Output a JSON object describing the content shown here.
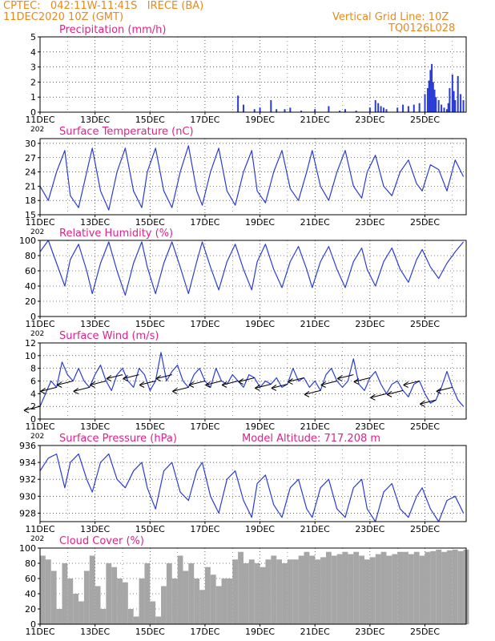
{
  "header": {
    "line1": "CPTEC:   042:11W-11:41S   IRECE (BA)",
    "line2": "11DEC2020 10Z (GMT)",
    "right1": "Vertical Grid Line: 10Z",
    "right2": "TQ0126L028"
  },
  "colors": {
    "header": "#e68a1f",
    "title": "#e0218a",
    "series": "#2b3cd6",
    "cloud": "#a6a6a6",
    "wind_arrow": "#000000"
  },
  "x_axis": {
    "tick_labels": [
      "11DEC",
      "13DEC",
      "15DEC",
      "17DEC",
      "19DEC",
      "21DEC",
      "23DEC",
      "25DEC"
    ],
    "tick_days": [
      11,
      13,
      15,
      17,
      19,
      21,
      23,
      25
    ],
    "year_fragment": "202",
    "range": [
      11,
      26.5
    ]
  },
  "chart_data": [
    {
      "type": "bar",
      "id": "precip",
      "title": "Precipitation (mm/h)",
      "ylim": [
        0,
        5
      ],
      "yticks": [
        0,
        1,
        2,
        3,
        4,
        5
      ],
      "grid": true,
      "x": [
        18.2,
        18.4,
        18.8,
        19.0,
        19.4,
        19.6,
        19.9,
        20.1,
        20.5,
        21.0,
        21.5,
        21.9,
        22.1,
        22.5,
        23.0,
        23.2,
        23.3,
        23.4,
        23.5,
        23.6,
        24.0,
        24.2,
        24.4,
        24.6,
        24.8,
        25.0,
        25.1,
        25.15,
        25.2,
        25.25,
        25.3,
        25.35,
        25.4,
        25.5,
        25.6,
        25.7,
        25.8,
        25.85,
        25.9,
        26.0,
        26.05,
        26.1,
        26.2,
        26.3,
        26.4
      ],
      "values": [
        1.1,
        0.5,
        0.2,
        0.3,
        0.8,
        0.2,
        0.2,
        0.3,
        0.1,
        0.2,
        0.4,
        0.1,
        0.2,
        0.1,
        0.3,
        0.8,
        0.6,
        0.4,
        0.3,
        0.2,
        0.3,
        0.5,
        0.4,
        0.5,
        0.6,
        1.2,
        1.6,
        2.1,
        2.8,
        3.2,
        2.0,
        1.5,
        1.0,
        0.8,
        0.5,
        0.3,
        0.2,
        0.6,
        1.6,
        2.5,
        1.4,
        0.8,
        2.4,
        1.2,
        0.8
      ]
    },
    {
      "type": "line",
      "id": "temp",
      "title": "Surface Temperature (nC)",
      "ylim": [
        15,
        31
      ],
      "yticks": [
        15,
        18,
        21,
        24,
        27,
        30
      ],
      "grid": true,
      "x": [
        11.0,
        11.3,
        11.6,
        11.9,
        12.1,
        12.4,
        12.7,
        12.9,
        13.2,
        13.5,
        13.8,
        14.1,
        14.4,
        14.7,
        14.9,
        15.2,
        15.5,
        15.8,
        16.1,
        16.4,
        16.7,
        16.9,
        17.2,
        17.5,
        17.8,
        18.1,
        18.4,
        18.7,
        18.9,
        19.2,
        19.5,
        19.8,
        20.1,
        20.4,
        20.7,
        20.9,
        21.2,
        21.5,
        21.8,
        22.1,
        22.4,
        22.7,
        22.9,
        23.2,
        23.5,
        23.8,
        24.1,
        24.4,
        24.7,
        24.9,
        25.2,
        25.5,
        25.8,
        26.1,
        26.4
      ],
      "values": [
        21,
        18,
        24,
        28.5,
        19,
        16.5,
        24,
        29,
        20,
        16,
        24,
        29,
        20,
        16.5,
        24,
        29,
        20,
        16.5,
        24,
        29.5,
        20,
        17,
        24,
        29,
        20,
        17,
        24,
        28.5,
        20,
        17.5,
        24,
        28.5,
        20.5,
        18,
        24,
        28.5,
        21,
        18,
        24,
        28.5,
        21,
        18.5,
        24,
        27.5,
        21,
        19,
        24,
        26.5,
        21.5,
        20,
        25.5,
        24.5,
        20,
        26.5,
        23
      ]
    },
    {
      "type": "line",
      "id": "rh",
      "title": "Relative Humidity (%)",
      "ylim": [
        0,
        100
      ],
      "yticks": [
        0,
        20,
        40,
        60,
        80,
        100
      ],
      "grid": true,
      "x": [
        11.0,
        11.3,
        11.6,
        11.9,
        12.1,
        12.4,
        12.7,
        12.9,
        13.2,
        13.5,
        13.8,
        14.1,
        14.4,
        14.7,
        14.9,
        15.2,
        15.5,
        15.8,
        16.1,
        16.4,
        16.7,
        16.9,
        17.2,
        17.5,
        17.8,
        18.1,
        18.4,
        18.7,
        18.9,
        19.2,
        19.5,
        19.8,
        20.1,
        20.4,
        20.7,
        20.9,
        21.2,
        21.5,
        21.8,
        22.1,
        22.4,
        22.7,
        22.9,
        23.2,
        23.5,
        23.8,
        24.1,
        24.4,
        24.7,
        24.9,
        25.2,
        25.5,
        25.8,
        26.1,
        26.4
      ],
      "values": [
        85,
        100,
        70,
        40,
        75,
        95,
        60,
        30,
        70,
        98,
        60,
        28,
        70,
        98,
        65,
        30,
        70,
        98,
        65,
        30,
        72,
        98,
        65,
        35,
        72,
        95,
        62,
        35,
        72,
        95,
        62,
        38,
        72,
        92,
        62,
        38,
        72,
        92,
        62,
        38,
        72,
        90,
        62,
        40,
        72,
        90,
        62,
        45,
        75,
        88,
        65,
        50,
        70,
        85,
        98
      ]
    },
    {
      "type": "line",
      "id": "wind",
      "title": "Surface Wind (m/s)",
      "ylim": [
        0,
        12
      ],
      "yticks": [
        0,
        2,
        4,
        6,
        8,
        10,
        12
      ],
      "grid": true,
      "x": [
        11.0,
        11.2,
        11.4,
        11.6,
        11.8,
        12.0,
        12.2,
        12.4,
        12.6,
        12.8,
        13.0,
        13.2,
        13.4,
        13.6,
        13.8,
        14.0,
        14.2,
        14.4,
        14.6,
        14.8,
        15.0,
        15.2,
        15.4,
        15.6,
        15.8,
        16.0,
        16.2,
        16.4,
        16.6,
        16.8,
        17.0,
        17.2,
        17.4,
        17.6,
        17.8,
        18.0,
        18.2,
        18.4,
        18.6,
        18.8,
        19.0,
        19.2,
        19.4,
        19.6,
        19.8,
        20.0,
        20.2,
        20.4,
        20.6,
        20.8,
        21.0,
        21.2,
        21.4,
        21.6,
        21.8,
        22.0,
        22.2,
        22.4,
        22.6,
        22.8,
        23.0,
        23.2,
        23.4,
        23.6,
        23.8,
        24.0,
        24.2,
        24.4,
        24.6,
        24.8,
        25.0,
        25.2,
        25.4,
        25.6,
        25.8,
        26.0,
        26.2,
        26.4
      ],
      "values": [
        2,
        4,
        6,
        5,
        9,
        7,
        6,
        8,
        6,
        5,
        7,
        8.5,
        6,
        4.5,
        7,
        8,
        6,
        5,
        8,
        7,
        4.5,
        6,
        10.5,
        6,
        7.5,
        8.5,
        6,
        5,
        7,
        8,
        6,
        5,
        8,
        6,
        5.5,
        7,
        6,
        5,
        7,
        6.5,
        5,
        6,
        5.5,
        6.5,
        5,
        5.5,
        8,
        6,
        6.5,
        5,
        6,
        4.5,
        7,
        8,
        6,
        5,
        6,
        9.5,
        5.5,
        4.5,
        6.5,
        7.5,
        5.5,
        4,
        5.5,
        6,
        4.5,
        3.5,
        5.5,
        6,
        4,
        2.5,
        3,
        5,
        7.5,
        5,
        3,
        2
      ]
    },
    {
      "type": "line",
      "id": "pres",
      "title": "Surface Pressure (hPa)",
      "note": "Model Altitude: 717.208  m",
      "ylim": [
        927,
        936
      ],
      "yticks": [
        928,
        930,
        932,
        934,
        936
      ],
      "grid": true,
      "x": [
        11.0,
        11.3,
        11.6,
        11.9,
        12.1,
        12.4,
        12.7,
        12.9,
        13.2,
        13.5,
        13.8,
        14.1,
        14.4,
        14.7,
        14.9,
        15.2,
        15.5,
        15.8,
        16.1,
        16.4,
        16.7,
        16.9,
        17.2,
        17.5,
        17.8,
        18.1,
        18.4,
        18.7,
        18.9,
        19.2,
        19.5,
        19.8,
        20.1,
        20.4,
        20.7,
        20.9,
        21.2,
        21.5,
        21.8,
        22.1,
        22.4,
        22.7,
        22.9,
        23.2,
        23.5,
        23.8,
        24.1,
        24.4,
        24.7,
        24.9,
        25.2,
        25.5,
        25.8,
        26.1,
        26.4
      ],
      "values": [
        933,
        934.5,
        935,
        931,
        934,
        935,
        932,
        930.5,
        934,
        935,
        932,
        931,
        933,
        934,
        931,
        928.5,
        933,
        934,
        930.5,
        929.5,
        933,
        934,
        930,
        928,
        932,
        933,
        929.5,
        927.5,
        931.5,
        932.5,
        929,
        927.5,
        931,
        932,
        928.5,
        927.5,
        931,
        932,
        928.5,
        927.5,
        931,
        932,
        928.5,
        927,
        930.5,
        931.5,
        928.5,
        927.5,
        930,
        931,
        928.5,
        927,
        929.5,
        930,
        928
      ]
    },
    {
      "type": "bar",
      "id": "cloud",
      "title": "Cloud Cover (%)",
      "ylim": [
        0,
        100
      ],
      "yticks": [
        0,
        20,
        40,
        60,
        80,
        100
      ],
      "grid": true,
      "x": [
        11.0,
        11.2,
        11.4,
        11.6,
        11.8,
        12.0,
        12.2,
        12.4,
        12.6,
        12.8,
        13.0,
        13.2,
        13.4,
        13.6,
        13.8,
        14.0,
        14.2,
        14.4,
        14.6,
        14.8,
        15.0,
        15.2,
        15.4,
        15.6,
        15.8,
        16.0,
        16.2,
        16.4,
        16.6,
        16.8,
        17.0,
        17.2,
        17.4,
        17.6,
        17.8,
        18.0,
        18.2,
        18.4,
        18.6,
        18.8,
        19.0,
        19.2,
        19.4,
        19.6,
        19.8,
        20.0,
        20.2,
        20.4,
        20.6,
        20.8,
        21.0,
        21.2,
        21.4,
        21.6,
        21.8,
        22.0,
        22.2,
        22.4,
        22.6,
        22.8,
        23.0,
        23.2,
        23.4,
        23.6,
        23.8,
        24.0,
        24.2,
        24.4,
        24.6,
        24.8,
        25.0,
        25.2,
        25.4,
        25.6,
        25.8,
        26.0,
        26.2,
        26.4
      ],
      "values": [
        90,
        85,
        70,
        20,
        80,
        60,
        40,
        30,
        70,
        90,
        50,
        20,
        80,
        75,
        60,
        55,
        20,
        10,
        60,
        80,
        30,
        10,
        50,
        80,
        60,
        90,
        70,
        80,
        60,
        45,
        75,
        65,
        50,
        60,
        60,
        85,
        95,
        80,
        85,
        80,
        75,
        85,
        90,
        85,
        80,
        85,
        85,
        90,
        95,
        90,
        85,
        88,
        95,
        90,
        92,
        95,
        92,
        95,
        90,
        85,
        88,
        92,
        95,
        90,
        92,
        95,
        95,
        92,
        95,
        90,
        95,
        96,
        98,
        95,
        97,
        98,
        96,
        98
      ]
    }
  ]
}
